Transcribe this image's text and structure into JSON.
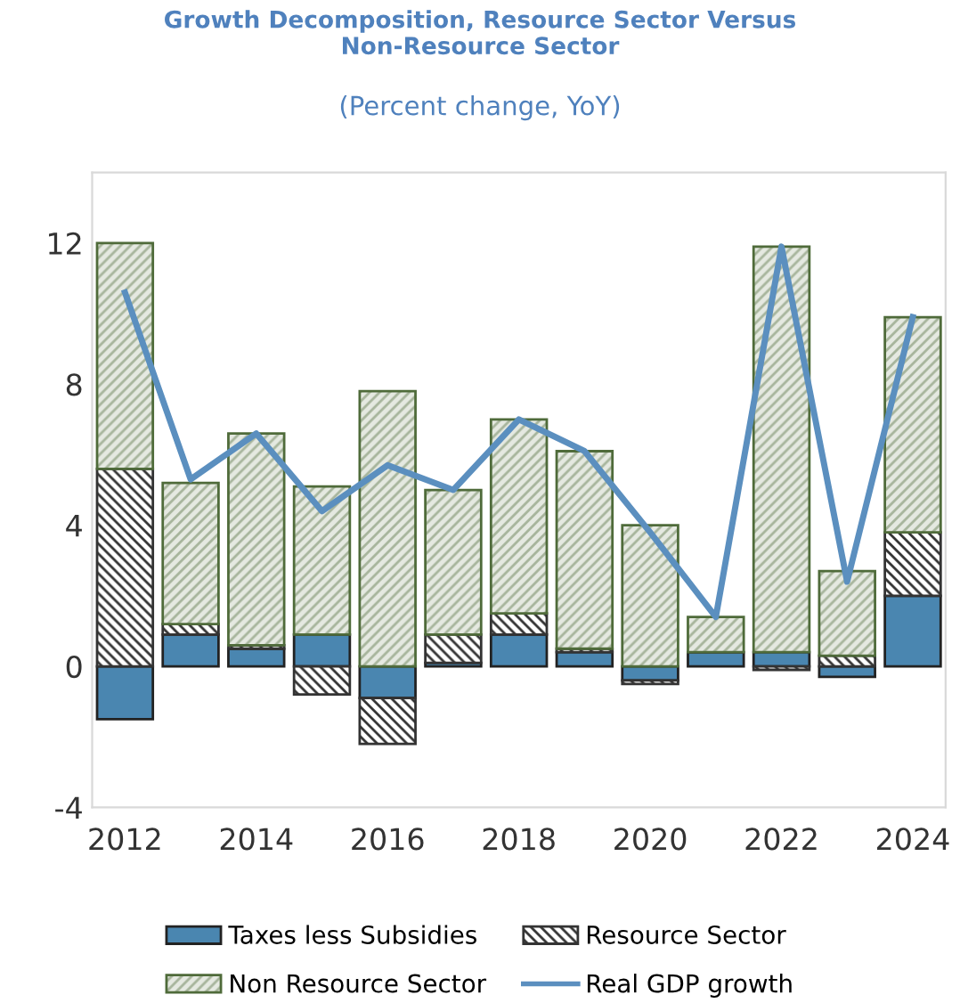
{
  "chart_data": {
    "type": "bar",
    "stacked": true,
    "title": "Growth Decomposition, Resource Sector Versus\nNon-Resource Sector",
    "subtitle": "(Percent change, YoY)",
    "x": [
      2012,
      2013,
      2014,
      2015,
      2016,
      2017,
      2018,
      2019,
      2020,
      2021,
      2022,
      2023,
      2024
    ],
    "series": [
      {
        "name": "Taxes less Subsidies",
        "color": "#4a86b0",
        "values": [
          -1.5,
          0.9,
          0.5,
          0.9,
          -0.9,
          0.1,
          0.9,
          0.4,
          -0.4,
          0.4,
          0.4,
          -0.3,
          2.0
        ]
      },
      {
        "name": "Resource Sector",
        "color": "#333333",
        "values": [
          5.6,
          0.3,
          0.1,
          -0.8,
          -1.3,
          0.8,
          0.6,
          0.1,
          -0.1,
          0.0,
          -0.1,
          0.3,
          1.8
        ]
      },
      {
        "name": "Non Resource Sector",
        "color": "#4f6b3a",
        "values": [
          6.4,
          4.0,
          6.0,
          4.2,
          7.8,
          4.1,
          5.5,
          5.6,
          4.0,
          1.0,
          11.5,
          2.4,
          6.1
        ]
      },
      {
        "name": "Real GDP growth",
        "type": "line",
        "color": "#5b8fbf",
        "values": [
          10.6,
          5.3,
          6.6,
          4.4,
          5.7,
          5.0,
          7.0,
          6.1,
          3.8,
          1.4,
          11.9,
          2.4,
          9.9
        ]
      }
    ],
    "xlim": [
      2011.5,
      2024.5
    ],
    "xticks": [
      2012,
      2014,
      2016,
      2018,
      2020,
      2022,
      2024
    ],
    "ylim": [
      -4,
      14
    ],
    "yticks": [
      -4,
      0,
      4,
      8,
      12
    ],
    "grid": false,
    "legend": "bottom",
    "marker": "none",
    "line_style": "solid"
  }
}
